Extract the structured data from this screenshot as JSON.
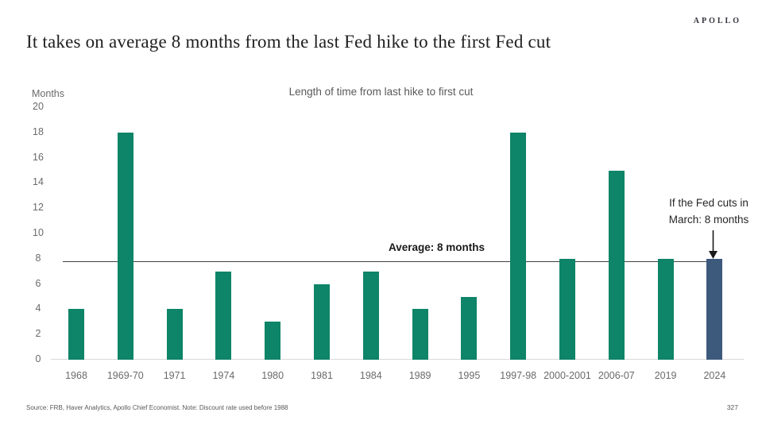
{
  "header": {
    "title": "It takes on average 8 months from the last Fed hike to the first Fed cut",
    "logo": "APOLLO"
  },
  "chart": {
    "title": "Length of time from last hike to first cut",
    "y_axis_title": "Months",
    "average_label": "Average: 8 months",
    "annotation_line1": "If the Fed cuts in",
    "annotation_line2": "March: 8 months"
  },
  "chart_data": {
    "type": "bar",
    "title": "Length of time from last hike to first cut",
    "ylabel": "Months",
    "categories": [
      "1968",
      "1969-70",
      "1971",
      "1974",
      "1980",
      "1981",
      "1984",
      "1989",
      "1995",
      "1997-98",
      "2000-2001",
      "2006-07",
      "2019",
      "2024"
    ],
    "values": [
      4,
      18,
      4,
      7,
      3,
      6,
      7,
      4,
      5,
      18,
      8,
      15,
      8,
      8
    ],
    "highlight_category": "2024",
    "average_line_value": 8,
    "ylim": [
      0,
      20
    ],
    "ytick_step": 2,
    "grid": false,
    "legend": "none",
    "colors": {
      "bar": "#0E8468",
      "highlight_bar": "#3D5A7D",
      "average_line": "#404040",
      "axis_line": "#d9d9d9",
      "axis_text": "#6a6a6a"
    }
  },
  "footer": {
    "source": "Source: FRB, Haver Analytics, Apollo Chief Economist. Note: Discount rate used before 1988",
    "page": "327"
  }
}
